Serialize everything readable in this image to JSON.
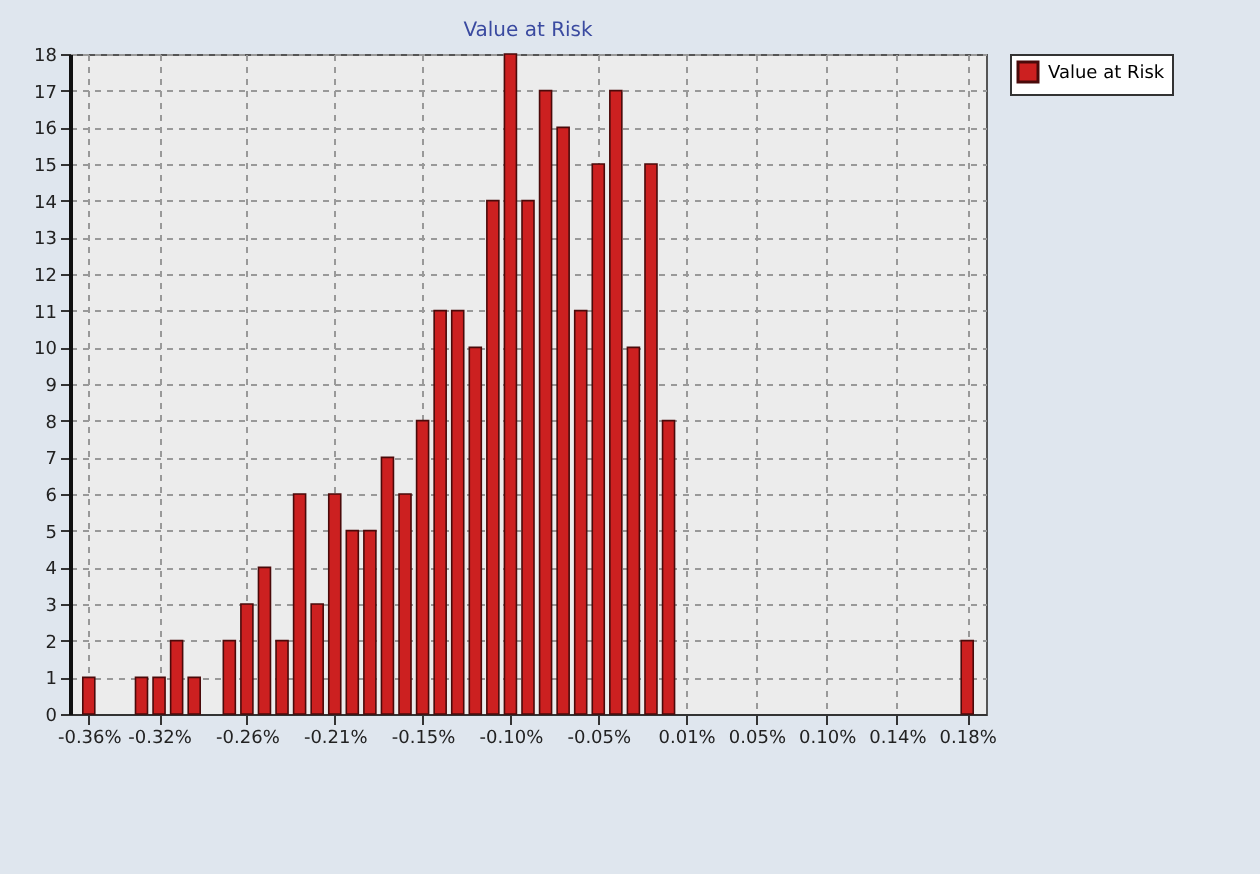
{
  "chart_data": {
    "type": "bar",
    "title": "Value at Risk",
    "categories": [
      "-0.36%",
      null,
      null,
      null,
      "-0.32%",
      null,
      null,
      null,
      null,
      "-0.26%",
      null,
      null,
      null,
      null,
      "-0.21%",
      null,
      null,
      null,
      null,
      "-0.15%",
      null,
      null,
      null,
      null,
      "-0.10%",
      null,
      null,
      null,
      null,
      "-0.05%",
      null,
      null,
      null,
      null,
      "0.01%",
      null,
      null,
      null,
      "0.05%",
      null,
      null,
      null,
      "0.10%",
      null,
      null,
      null,
      "0.14%",
      null,
      null,
      null,
      "0.18%"
    ],
    "series": [
      {
        "name": "Value at Risk",
        "color": "#cc2020",
        "values": [
          1,
          0,
          0,
          1,
          1,
          2,
          1,
          0,
          2,
          3,
          4,
          2,
          6,
          3,
          6,
          5,
          5,
          7,
          6,
          8,
          11,
          11,
          10,
          14,
          18,
          14,
          17,
          16,
          11,
          15,
          17,
          10,
          15,
          8,
          0,
          0,
          0,
          0,
          0,
          0,
          0,
          0,
          0,
          0,
          0,
          0,
          0,
          0,
          0,
          0,
          2
        ]
      }
    ],
    "ylim": [
      0,
      18
    ],
    "yticks": [
      0,
      1,
      2,
      3,
      4,
      5,
      6,
      7,
      8,
      9,
      10,
      11,
      12,
      13,
      14,
      15,
      16,
      17,
      18
    ],
    "grid": true,
    "legend": "top right"
  }
}
